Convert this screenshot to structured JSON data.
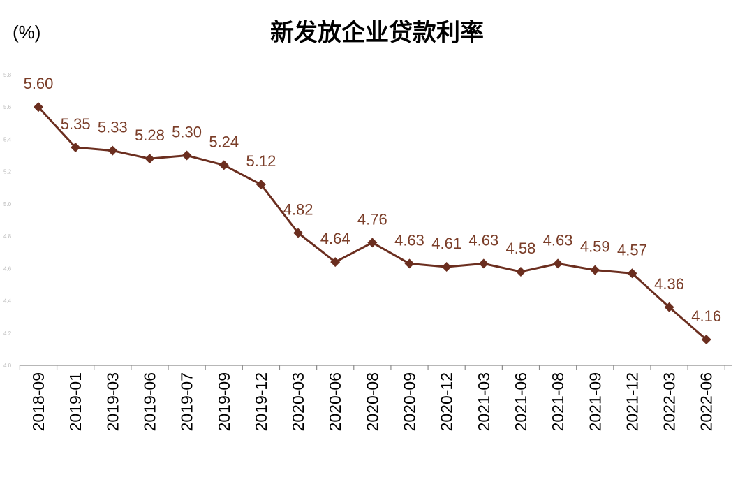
{
  "chart_data": {
    "type": "line",
    "title": "新发放企业贷款利率",
    "unit_label": "(%)",
    "ylim": [
      4.0,
      5.8
    ],
    "yticks": [
      "4.0",
      "4.2",
      "4.4",
      "4.6",
      "4.8",
      "5.0",
      "5.2",
      "5.4",
      "5.6",
      "5.8"
    ],
    "grid": false,
    "legend": "none",
    "categories": [
      "2018-09",
      "2019-01",
      "2019-03",
      "2019-06",
      "2019-07",
      "2019-09",
      "2019-12",
      "2020-03",
      "2020-06",
      "2020-08",
      "2020-09",
      "2020-12",
      "2021-03",
      "2021-06",
      "2021-08",
      "2021-09",
      "2021-12",
      "2022-03",
      "2022-06"
    ],
    "series": [
      {
        "values": [
          5.6,
          5.35,
          5.33,
          5.28,
          5.3,
          5.24,
          5.12,
          4.82,
          4.64,
          4.76,
          4.63,
          4.61,
          4.63,
          4.58,
          4.63,
          4.59,
          4.57,
          4.36,
          4.16
        ],
        "labels": [
          "5.60",
          "5.35",
          "5.33",
          "5.28",
          "5.30",
          "5.24",
          "5.12",
          "4.82",
          "4.64",
          "4.76",
          "4.63",
          "4.61",
          "4.63",
          "4.58",
          "4.63",
          "4.59",
          "4.57",
          "4.36",
          "4.16"
        ],
        "color": "#6b2e1f"
      }
    ],
    "label_color": "#7a3d28",
    "axis_color": "#8c8c8c"
  }
}
